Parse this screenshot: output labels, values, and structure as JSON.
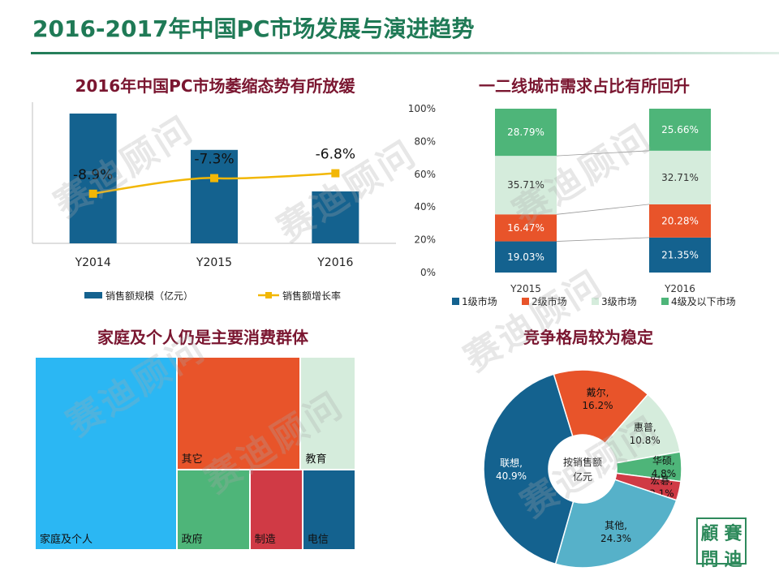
{
  "slide_title": "2016-2017年中国PC市场发展与演进趋势",
  "watermark": "赛迪顾问",
  "logo_chars": [
    "顧",
    "賽",
    "問",
    "迪"
  ],
  "colors": {
    "dark_blue": "#14628f",
    "yellow": "#f2b705",
    "orange": "#e8542a",
    "light_green": "#d5ecdc",
    "green": "#4eb579",
    "sky": "#2bb7f3",
    "red": "#d03a45",
    "teal": "#56b1c9"
  },
  "chart_data": [
    {
      "id": "market_size",
      "type": "bar",
      "title": "2016年中国PC市场萎缩态势有所放缓",
      "categories": [
        "Y2014",
        "Y2015",
        "Y2016"
      ],
      "series": [
        {
          "name": "销售额规模（亿元）",
          "kind": "bar",
          "values": [
            100,
            72,
            40
          ]
        },
        {
          "name": "销售额增长率",
          "kind": "line",
          "values": [
            -8.9,
            -7.3,
            -6.8
          ],
          "labels": [
            "-8.9%",
            "-7.3%",
            "-6.8%"
          ]
        }
      ],
      "ylim_bar": [
        0,
        105
      ],
      "ylim_line": [
        -14,
        0
      ],
      "legend": "bottom"
    },
    {
      "id": "city_tier_share",
      "type": "bar",
      "stacked": true,
      "title": "一二线城市需求占比有所回升",
      "categories": [
        "Y2015",
        "Y2016"
      ],
      "yticks": [
        "0%",
        "20%",
        "40%",
        "60%",
        "80%",
        "100%"
      ],
      "series": [
        {
          "name": "1级市场",
          "values": [
            19.03,
            21.35
          ],
          "labels": [
            "19.03%",
            "21.35%"
          ]
        },
        {
          "name": "2级市场",
          "values": [
            16.47,
            20.28
          ],
          "labels": [
            "16.47%",
            "20.28%"
          ]
        },
        {
          "name": "3级市场",
          "values": [
            35.71,
            32.71
          ],
          "labels": [
            "35.71%",
            "32.71%"
          ]
        },
        {
          "name": "4级及以下市场",
          "values": [
            28.79,
            25.66
          ],
          "labels": [
            "28.79%",
            "25.66%"
          ]
        }
      ],
      "ylim": [
        0,
        100
      ],
      "legend": "bottom"
    },
    {
      "id": "consumer_groups",
      "type": "treemap",
      "title": "家庭及个人仍是主要消费群体",
      "items": [
        {
          "name": "家庭及个人",
          "value": 42
        },
        {
          "name": "其它",
          "value": 21.5
        },
        {
          "name": "教育",
          "value": 9.5
        },
        {
          "name": "政府",
          "value": 9
        },
        {
          "name": "制造",
          "value": 6.5
        },
        {
          "name": "电信",
          "value": 6.5
        }
      ]
    },
    {
      "id": "competition",
      "type": "pie",
      "donut": true,
      "title": "竞争格局较为稳定",
      "center_label": [
        "按销售额",
        "亿元"
      ],
      "slices": [
        {
          "name": "戴尔",
          "value": 16.2,
          "label": [
            "戴尔,",
            "16.2%"
          ]
        },
        {
          "name": "惠普",
          "value": 10.8,
          "label": [
            "惠普,",
            "10.8%"
          ]
        },
        {
          "name": "华硕",
          "value": 4.8,
          "label": [
            "华硕,",
            "4.8%"
          ]
        },
        {
          "name": "宏碁",
          "value": 3.1,
          "label": [
            "宏碁,",
            "3.1%"
          ]
        },
        {
          "name": "其他",
          "value": 24.3,
          "label": [
            "其他,",
            "24.3%"
          ]
        },
        {
          "name": "联想",
          "value": 40.9,
          "label": [
            "联想,",
            "40.9%"
          ]
        }
      ]
    }
  ]
}
